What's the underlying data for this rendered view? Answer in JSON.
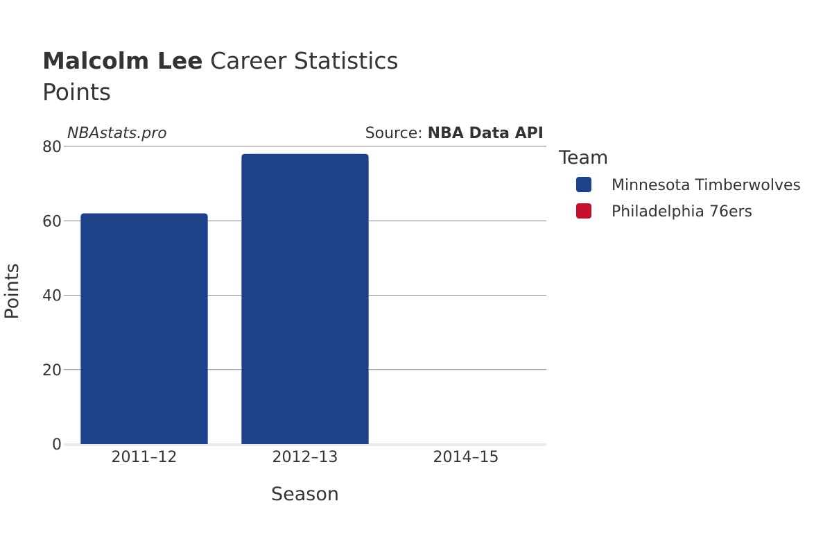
{
  "header": {
    "player_name": "Malcolm Lee",
    "title_suffix": " Career Statistics",
    "subtitle": "Points"
  },
  "watermark": "NBAstats.pro",
  "source": {
    "prefix": "Source: ",
    "name": "NBA Data API"
  },
  "chart_data": {
    "type": "bar",
    "categories": [
      "2011–12",
      "2012–13",
      "2014–15"
    ],
    "series": [
      {
        "name": "Minnesota Timberwolves",
        "color": "#1d428a",
        "values": [
          62,
          78,
          0
        ]
      },
      {
        "name": "Philadelphia 76ers",
        "color": "#c8102e",
        "values": [
          0,
          0,
          0
        ]
      }
    ],
    "xlabel": "Season",
    "ylabel": "Points",
    "ylim": [
      0,
      80
    ],
    "yticks": [
      0,
      20,
      40,
      60,
      80
    ],
    "grid": true,
    "legend": {
      "title": "Team",
      "placement": "right"
    }
  }
}
